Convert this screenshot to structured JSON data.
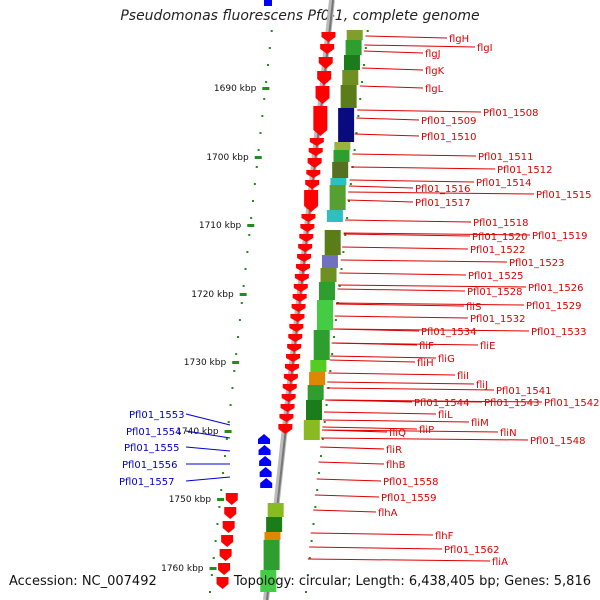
{
  "title": "Pseudomonas fluorescens Pf0-1, complete genome",
  "footer": {
    "accession": "Accession: NC_007492",
    "summary": "Topology: circular; Length: 6,438,405 bp; Genes: 5,816"
  },
  "scale": {
    "ticks": [
      {
        "label": "1690 kbp"
      },
      {
        "label": "1700 kbp"
      },
      {
        "label": "1710 kbp"
      },
      {
        "label": "1720 kbp"
      },
      {
        "label": "1730 kbp"
      },
      {
        "label": "1740 kbp"
      },
      {
        "label": "1750 kbp"
      },
      {
        "label": "1760 kbp"
      }
    ]
  },
  "colors": {
    "forward_gene": "#ff0000",
    "reverse_gene": "#0000ff",
    "backbone": "#999999",
    "tick_dots": "#228b22",
    "label_red": "#dd0000",
    "label_blue": "#0000cc"
  },
  "labels_right": [
    {
      "text": "flgH"
    },
    {
      "text": "flgI"
    },
    {
      "text": "flgJ"
    },
    {
      "text": "flgK"
    },
    {
      "text": "flgL"
    },
    {
      "text": "Pfl01_1508"
    },
    {
      "text": "Pfl01_1509"
    },
    {
      "text": "Pfl01_1510"
    },
    {
      "text": "Pfl01_1511"
    },
    {
      "text": "Pfl01_1512"
    },
    {
      "text": "Pfl01_1514"
    },
    {
      "text": "Pfl01_1515"
    },
    {
      "text": "Pfl01_1516"
    },
    {
      "text": "Pfl01_1517"
    },
    {
      "text": "Pfl01_1518"
    },
    {
      "text": "Pfl01_1520"
    },
    {
      "text": "Pfl01_1519"
    },
    {
      "text": "Pfl01_1522"
    },
    {
      "text": "Pfl01_1523"
    },
    {
      "text": "Pfl01_1525"
    },
    {
      "text": "Pfl01_1526"
    },
    {
      "text": "Pfl01_1528"
    },
    {
      "text": "fliS"
    },
    {
      "text": "Pfl01_1529"
    },
    {
      "text": "Pfl01_1532"
    },
    {
      "text": "Pfl01_1534"
    },
    {
      "text": "Pfl01_1533"
    },
    {
      "text": "fliF"
    },
    {
      "text": "fliE"
    },
    {
      "text": "fliG"
    },
    {
      "text": "fliH"
    },
    {
      "text": "fliI"
    },
    {
      "text": "fliJ"
    },
    {
      "text": "Pfl01_1541"
    },
    {
      "text": "Pfl01_1544"
    },
    {
      "text": "Pfl01_1543"
    },
    {
      "text": "Pfl01_1542"
    },
    {
      "text": "fliL"
    },
    {
      "text": "fliM"
    },
    {
      "text": "fliN"
    },
    {
      "text": "fliP"
    },
    {
      "text": "fliQ"
    },
    {
      "text": "Pfl01_1548"
    },
    {
      "text": "fliR"
    },
    {
      "text": "flhB"
    },
    {
      "text": "Pfl01_1558"
    },
    {
      "text": "Pfl01_1559"
    },
    {
      "text": "flhA"
    },
    {
      "text": "flhF"
    },
    {
      "text": "Pfl01_1562"
    },
    {
      "text": "fliA"
    }
  ],
  "labels_left": [
    {
      "text": "Pfl01_1553"
    },
    {
      "text": "Pfl01_1554"
    },
    {
      "text": "Pfl01_1555"
    },
    {
      "text": "Pfl01_1556"
    },
    {
      "text": "Pfl01_1557"
    }
  ]
}
